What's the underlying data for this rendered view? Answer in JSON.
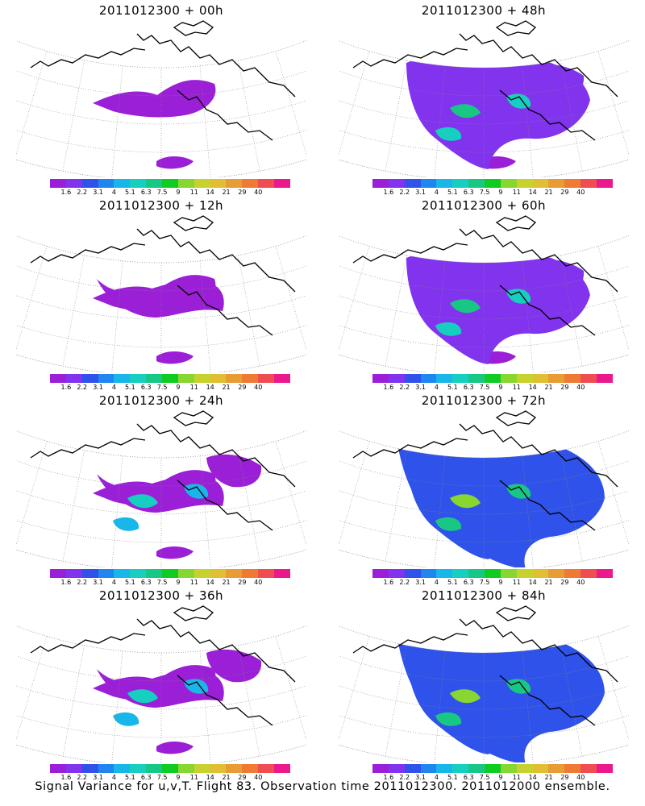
{
  "panels": [
    {
      "title": "2011012300 + 00h",
      "level": 0
    },
    {
      "title": "2011012300 + 48h",
      "level": 4
    },
    {
      "title": "2011012300 + 12h",
      "level": 1
    },
    {
      "title": "2011012300 + 60h",
      "level": 5
    },
    {
      "title": "2011012300 + 24h",
      "level": 2
    },
    {
      "title": "2011012300 + 72h",
      "level": 6
    },
    {
      "title": "2011012300 + 36h",
      "level": 3
    },
    {
      "title": "2011012300 + 84h",
      "level": 7
    }
  ],
  "colorbar": {
    "colors": [
      "#9a1fd6",
      "#8133ee",
      "#2f52ea",
      "#1f86f0",
      "#19b6ea",
      "#16cfc0",
      "#18c784",
      "#10cc22",
      "#88d630",
      "#c8d22e",
      "#e0bf34",
      "#e89d34",
      "#ef7a34",
      "#ef4d52",
      "#ea1a8c"
    ],
    "labels": [
      "1.6",
      "2.2",
      "3.1",
      "4",
      "5.1",
      "6.3",
      "7.5",
      "9",
      "11",
      "14",
      "21",
      "29",
      "40"
    ]
  },
  "footer": "Signal Variance for u,v,T. Flight 83. Observation time 2011012300. 2011012000 ensemble."
}
